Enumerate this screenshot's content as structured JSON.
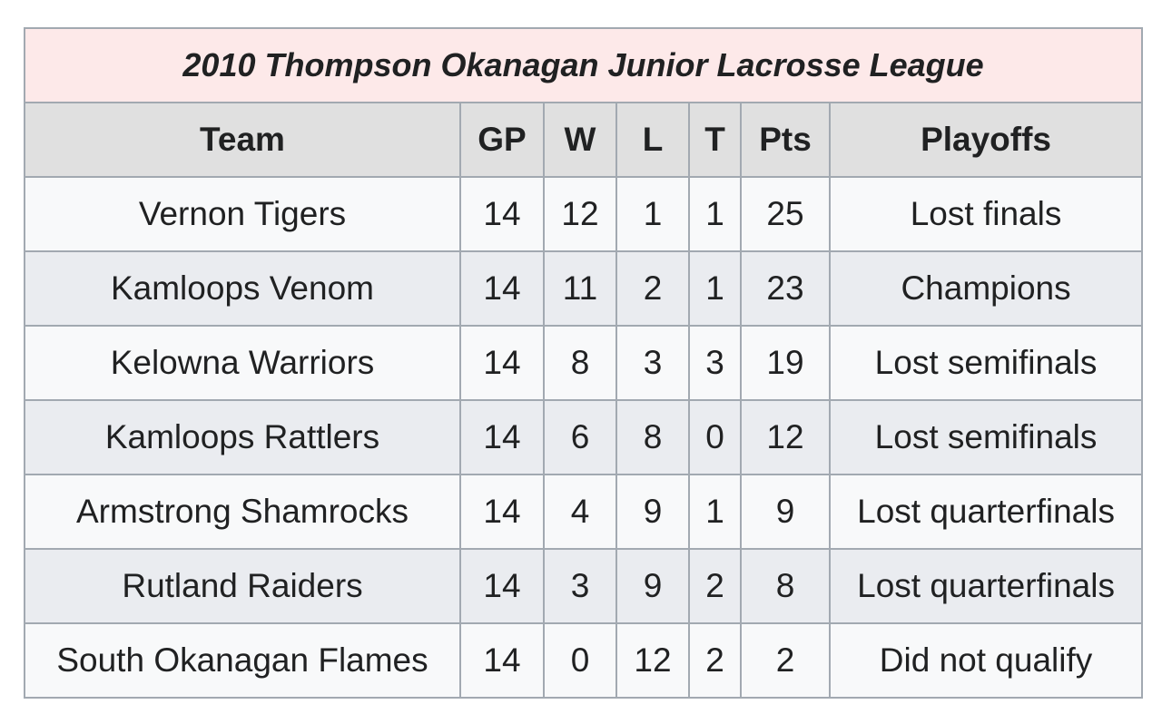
{
  "table": {
    "caption": "2010 Thompson Okanagan Junior Lacrosse League",
    "header": [
      "Team",
      "GP",
      "W",
      "L",
      "T",
      "Pts",
      "Playoffs"
    ],
    "rows": [
      [
        "Vernon Tigers",
        14,
        12,
        1,
        1,
        25,
        "Lost finals"
      ],
      [
        "Kamloops Venom",
        14,
        11,
        2,
        1,
        23,
        "Champions"
      ],
      [
        "Kelowna Warriors",
        14,
        8,
        3,
        3,
        19,
        "Lost semifinals"
      ],
      [
        "Kamloops Rattlers",
        14,
        6,
        8,
        0,
        12,
        "Lost semifinals"
      ],
      [
        "Armstrong Shamrocks",
        14,
        4,
        9,
        1,
        9,
        "Lost quarterfinals"
      ],
      [
        "Rutland Raiders",
        14,
        3,
        9,
        2,
        8,
        "Lost quarterfinals"
      ],
      [
        "South Okanagan Flames",
        14,
        0,
        12,
        2,
        2,
        "Did not qualify"
      ]
    ]
  }
}
